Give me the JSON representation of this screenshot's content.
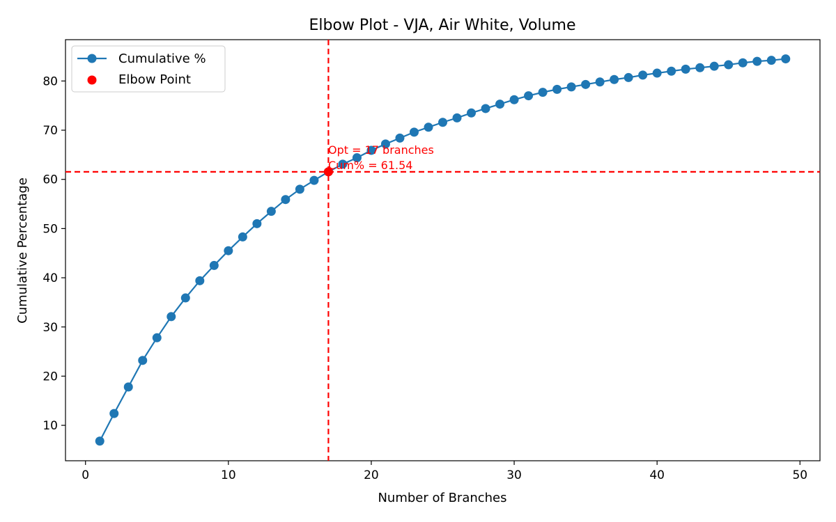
{
  "chart_data": {
    "type": "line",
    "title": "Elbow Plot - VJA, Air White, Volume",
    "xlabel": "Number of Branches",
    "ylabel": "Cumulative Percentage",
    "xlim": [
      -1.4,
      51.4
    ],
    "ylim": [
      2.8,
      88.4
    ],
    "x_ticks": [
      0,
      10,
      20,
      30,
      40,
      50
    ],
    "y_ticks": [
      10,
      20,
      30,
      40,
      50,
      60,
      70,
      80
    ],
    "grid": false,
    "legend_position": "top-left",
    "series": [
      {
        "name": "Cumulative %",
        "color": "#1f77b4",
        "marker": "circle",
        "x": [
          1,
          2,
          3,
          4,
          5,
          6,
          7,
          8,
          9,
          10,
          11,
          12,
          13,
          14,
          15,
          16,
          17,
          18,
          19,
          20,
          21,
          22,
          23,
          24,
          25,
          26,
          27,
          28,
          29,
          30,
          31,
          32,
          33,
          34,
          35,
          36,
          37,
          38,
          39,
          40,
          41,
          42,
          43,
          44,
          45,
          46,
          47,
          48,
          49
        ],
        "y": [
          6.8,
          12.4,
          17.8,
          23.2,
          27.8,
          32.1,
          35.9,
          39.4,
          42.5,
          45.5,
          48.3,
          51.0,
          53.5,
          55.9,
          58.0,
          59.8,
          61.54,
          63.1,
          64.4,
          65.9,
          67.2,
          68.4,
          69.6,
          70.6,
          71.6,
          72.5,
          73.5,
          74.4,
          75.3,
          76.2,
          77.0,
          77.7,
          78.3,
          78.8,
          79.3,
          79.8,
          80.3,
          80.7,
          81.2,
          81.6,
          82.0,
          82.4,
          82.7,
          83.0,
          83.3,
          83.7,
          84.0,
          84.2,
          84.5
        ]
      }
    ],
    "elbow": {
      "name": "Elbow Point",
      "color": "#ff0000",
      "x": 17,
      "y": 61.54
    },
    "annotation": {
      "line1": "Opt = 17 branches",
      "line2": "Cum% = 61.54"
    }
  }
}
